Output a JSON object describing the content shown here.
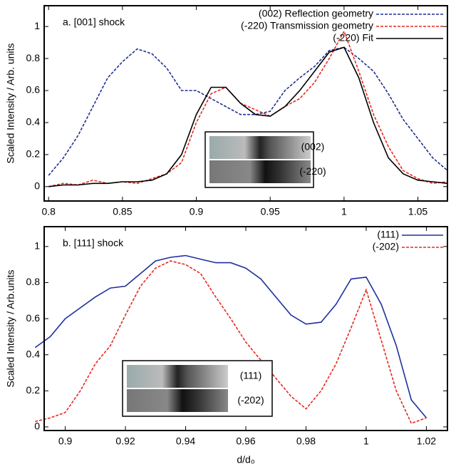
{
  "chart_data": [
    {
      "type": "line",
      "annotation": "a. [001] shock",
      "ylabel": "Scaled Intensity / Arb. units",
      "x": [
        0.8,
        0.81,
        0.82,
        0.83,
        0.84,
        0.85,
        0.86,
        0.87,
        0.88,
        0.89,
        0.9,
        0.91,
        0.92,
        0.93,
        0.94,
        0.95,
        0.96,
        0.97,
        0.98,
        0.99,
        1.0,
        1.01,
        1.02,
        1.03,
        1.04,
        1.05,
        1.06,
        1.07
      ],
      "series": [
        {
          "name": "(002) Reflection geometry",
          "color": "#1f2f8f",
          "dash": true,
          "values": [
            0.07,
            0.18,
            0.32,
            0.5,
            0.68,
            0.78,
            0.86,
            0.83,
            0.74,
            0.6,
            0.6,
            0.55,
            0.5,
            0.45,
            0.45,
            0.47,
            0.6,
            0.68,
            0.75,
            0.85,
            0.87,
            0.8,
            0.72,
            0.58,
            0.42,
            0.3,
            0.18,
            0.1
          ]
        },
        {
          "name": "(-220) Transmission geometry",
          "color": "#e8281e",
          "dash": true,
          "values": [
            0.0,
            0.02,
            0.01,
            0.04,
            0.02,
            0.03,
            0.02,
            0.05,
            0.08,
            0.15,
            0.4,
            0.58,
            0.62,
            0.52,
            0.48,
            0.44,
            0.5,
            0.55,
            0.65,
            0.8,
            0.97,
            0.72,
            0.45,
            0.25,
            0.1,
            0.05,
            0.02,
            0.03
          ]
        },
        {
          "name": "(-220) Fit",
          "color": "#000000",
          "dash": false,
          "values": [
            0.0,
            0.01,
            0.01,
            0.02,
            0.02,
            0.03,
            0.03,
            0.04,
            0.08,
            0.2,
            0.45,
            0.62,
            0.62,
            0.52,
            0.45,
            0.44,
            0.5,
            0.6,
            0.72,
            0.84,
            0.87,
            0.68,
            0.4,
            0.18,
            0.08,
            0.04,
            0.03,
            0.02
          ]
        }
      ],
      "xlim": [
        0.797,
        1.07
      ],
      "xticks": [
        0.8,
        0.85,
        0.9,
        0.95,
        1,
        1.05
      ],
      "ylim": [
        -0.09,
        1.13
      ],
      "yticks": [
        0,
        0.2,
        0.4,
        0.6,
        0.8,
        1
      ],
      "inset": [
        "(002)",
        "(-220)"
      ]
    },
    {
      "type": "line",
      "annotation": "b. [111] shock",
      "ylabel": "Scaled Intensity / Arb.units",
      "xlabel": "d/d₀",
      "x": [
        0.89,
        0.895,
        0.9,
        0.905,
        0.91,
        0.915,
        0.92,
        0.925,
        0.93,
        0.935,
        0.94,
        0.945,
        0.95,
        0.955,
        0.96,
        0.965,
        0.97,
        0.975,
        0.98,
        0.985,
        0.99,
        0.995,
        1.0,
        1.005,
        1.01,
        1.015,
        1.02
      ],
      "series": [
        {
          "name": "(111)",
          "color": "#1f2f9f",
          "dash": false,
          "values": [
            0.44,
            0.5,
            0.6,
            0.66,
            0.72,
            0.77,
            0.78,
            0.85,
            0.92,
            0.94,
            0.95,
            0.93,
            0.91,
            0.91,
            0.88,
            0.82,
            0.72,
            0.62,
            0.57,
            0.58,
            0.68,
            0.82,
            0.83,
            0.68,
            0.45,
            0.15,
            0.05
          ]
        },
        {
          "name": "(-202)",
          "color": "#e8281e",
          "dash": true,
          "values": [
            0.03,
            0.05,
            0.08,
            0.2,
            0.35,
            0.45,
            0.62,
            0.78,
            0.88,
            0.92,
            0.9,
            0.85,
            0.72,
            0.6,
            0.47,
            0.37,
            0.27,
            0.17,
            0.1,
            0.2,
            0.35,
            0.55,
            0.76,
            0.48,
            0.2,
            0.02,
            0.05
          ]
        }
      ],
      "xlim": [
        0.893,
        1.027
      ],
      "xticks": [
        0.9,
        0.92,
        0.94,
        0.96,
        0.98,
        1,
        1.02
      ],
      "ylim": [
        -0.02,
        1.11
      ],
      "yticks": [
        0,
        0.2,
        0.4,
        0.6,
        0.8,
        1
      ],
      "inset": [
        "(111)",
        "(-202)"
      ]
    }
  ]
}
